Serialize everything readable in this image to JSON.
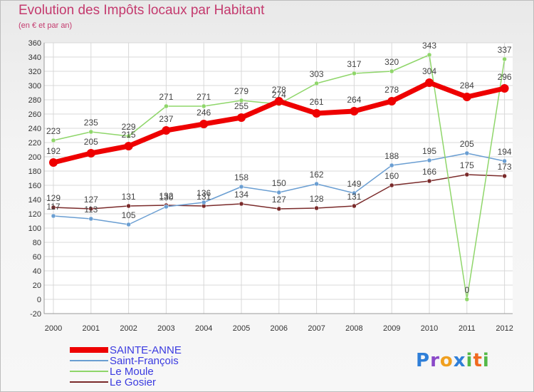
{
  "chart_data": {
    "type": "line",
    "title": "Evolution des Impôts locaux par Habitant",
    "subtitle": "(en € et par an)",
    "x": [
      "2000",
      "2001",
      "2002",
      "2003",
      "2004",
      "2005",
      "2006",
      "2007",
      "2008",
      "2009",
      "2010",
      "2011",
      "2012"
    ],
    "ylim": [
      -20,
      360
    ],
    "yticks": [
      -20,
      0,
      20,
      40,
      60,
      80,
      100,
      120,
      140,
      160,
      180,
      200,
      220,
      240,
      260,
      280,
      300,
      320,
      340,
      360
    ],
    "grid": true,
    "legend_position": "bottom-left",
    "series": [
      {
        "name": "SAINTE-ANNE",
        "color": "#ee0000",
        "values": [
          192,
          205,
          215,
          237,
          246,
          255,
          278,
          261,
          264,
          278,
          304,
          284,
          296
        ]
      },
      {
        "name": "Saint-François",
        "color": "#6a9ed2",
        "values": [
          117,
          113,
          105,
          130,
          136,
          158,
          150,
          162,
          149,
          188,
          195,
          205,
          194
        ]
      },
      {
        "name": "Le Moule",
        "color": "#8fd66a",
        "values": [
          223,
          235,
          229,
          271,
          271,
          279,
          274,
          303,
          317,
          320,
          343,
          0,
          337
        ]
      },
      {
        "name": "Le Gosier",
        "color": "#7a2a2a",
        "values": [
          129,
          127,
          131,
          132,
          131,
          134,
          127,
          128,
          131,
          160,
          166,
          175,
          173
        ]
      }
    ]
  },
  "logo": {
    "p": "P",
    "r": "r",
    "o": "o",
    "x": "x",
    "i": "i",
    "t": "t",
    "i2": "i"
  }
}
